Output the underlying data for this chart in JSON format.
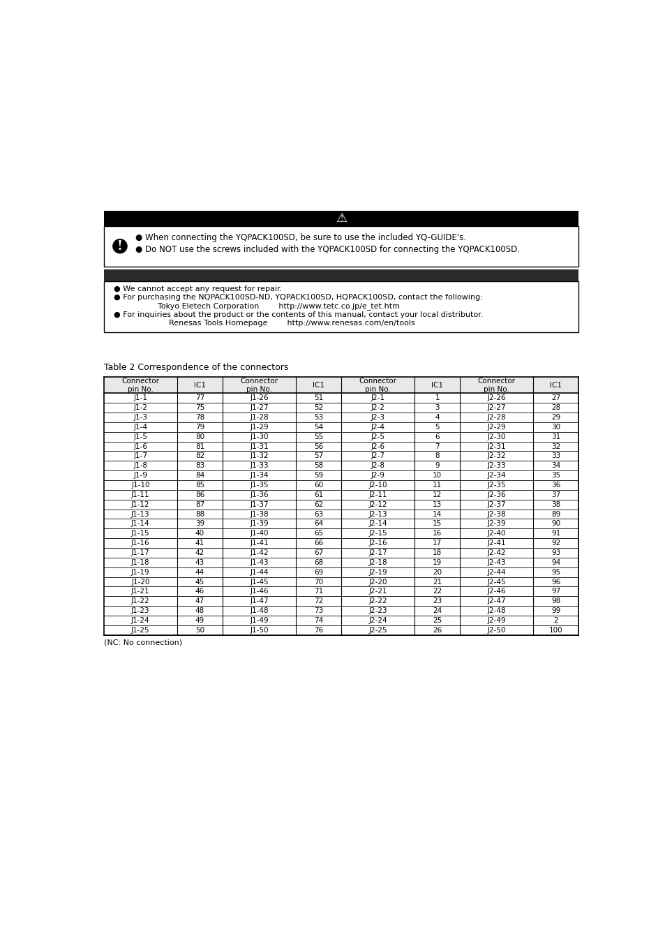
{
  "bg_color": "#ffffff",
  "caution_bullets": [
    "● When connecting the YQPACK100SD, be sure to use the included YQ-GUIDE's.",
    "● Do NOT use the screws included with the YQPACK100SD for connecting the YQPACK100SD."
  ],
  "important_lines": [
    [
      18,
      "● We cannot accept any request for repair."
    ],
    [
      18,
      "● For purchasing the NQPACK100SD-ND, YQPACK100SD, HQPACK100SD, contact the following:"
    ],
    [
      100,
      "Tokyo Eletech Corporation        http://www.tetc.co.jp/e_tet.htm"
    ],
    [
      18,
      "● For inquiries about the product or the contents of this manual, contact your local distributor."
    ],
    [
      120,
      "Renesas Tools Homepage        http://www.renesas.com/en/tools"
    ]
  ],
  "table_title": "Table 2 Correspondence of the connectors",
  "table_note": "(NC: No connection)",
  "table_headers": [
    "Connector\npin No.",
    "IC1",
    "Connector\npin No.",
    "IC1",
    "Connector\npin No.",
    "IC1",
    "Connector\npin No.",
    "IC1"
  ],
  "col_widths_rel": [
    1.3,
    0.8,
    1.3,
    0.8,
    1.3,
    0.8,
    1.3,
    0.8
  ],
  "table_data": [
    [
      "J1-1",
      "77",
      "J1-26",
      "51",
      "J2-1",
      "1",
      "J2-26",
      "27"
    ],
    [
      "J1-2",
      "75",
      "J1-27",
      "52",
      "J2-2",
      "3",
      "J2-27",
      "28"
    ],
    [
      "J1-3",
      "78",
      "J1-28",
      "53",
      "J2-3",
      "4",
      "J2-28",
      "29"
    ],
    [
      "J1-4",
      "79",
      "J1-29",
      "54",
      "J2-4",
      "5",
      "J2-29",
      "30"
    ],
    [
      "J1-5",
      "80",
      "J1-30",
      "55",
      "J2-5",
      "6",
      "J2-30",
      "31"
    ],
    [
      "J1-6",
      "81",
      "J1-31",
      "56",
      "J2-6",
      "7",
      "J2-31",
      "32"
    ],
    [
      "J1-7",
      "82",
      "J1-32",
      "57",
      "J2-7",
      "8",
      "J2-32",
      "33"
    ],
    [
      "J1-8",
      "83",
      "J1-33",
      "58",
      "J2-8",
      "9",
      "J2-33",
      "34"
    ],
    [
      "J1-9",
      "84",
      "J1-34",
      "59",
      "J2-9",
      "10",
      "J2-34",
      "35"
    ],
    [
      "J1-10",
      "85",
      "J1-35",
      "60",
      "J2-10",
      "11",
      "J2-35",
      "36"
    ],
    [
      "J1-11",
      "86",
      "J1-36",
      "61",
      "J2-11",
      "12",
      "J2-36",
      "37"
    ],
    [
      "J1-12",
      "87",
      "J1-37",
      "62",
      "J2-12",
      "13",
      "J2-37",
      "38"
    ],
    [
      "J1-13",
      "88",
      "J1-38",
      "63",
      "J2-13",
      "14",
      "J2-38",
      "89"
    ],
    [
      "J1-14",
      "39",
      "J1-39",
      "64",
      "J2-14",
      "15",
      "J2-39",
      "90"
    ],
    [
      "J1-15",
      "40",
      "J1-40",
      "65",
      "J2-15",
      "16",
      "J2-40",
      "91"
    ],
    [
      "J1-16",
      "41",
      "J1-41",
      "66",
      "J2-16",
      "17",
      "J2-41",
      "92"
    ],
    [
      "J1-17",
      "42",
      "J1-42",
      "67",
      "J2-17",
      "18",
      "J2-42",
      "93"
    ],
    [
      "J1-18",
      "43",
      "J1-43",
      "68",
      "J2-18",
      "19",
      "J2-43",
      "94"
    ],
    [
      "J1-19",
      "44",
      "J1-44",
      "69",
      "J2-19",
      "20",
      "J2-44",
      "95"
    ],
    [
      "J1-20",
      "45",
      "J1-45",
      "70",
      "J2-20",
      "21",
      "J2-45",
      "96"
    ],
    [
      "J1-21",
      "46",
      "J1-46",
      "71",
      "J2-21",
      "22",
      "J2-46",
      "97"
    ],
    [
      "J1-22",
      "47",
      "J1-47",
      "72",
      "J2-22",
      "23",
      "J2-47",
      "98"
    ],
    [
      "J1-23",
      "48",
      "J1-48",
      "73",
      "J2-23",
      "24",
      "J2-48",
      "99"
    ],
    [
      "J1-24",
      "49",
      "J1-49",
      "74",
      "J2-24",
      "25",
      "J2-49",
      "2"
    ],
    [
      "J1-25",
      "50",
      "J1-50",
      "76",
      "J2-25",
      "26",
      "J2-50",
      "100"
    ]
  ]
}
